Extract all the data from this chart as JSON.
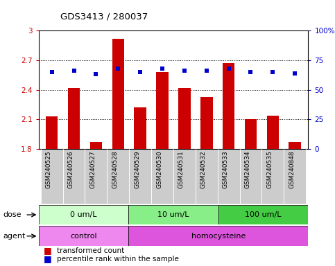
{
  "title": "GDS3413 / 280037",
  "samples": [
    "GSM240525",
    "GSM240526",
    "GSM240527",
    "GSM240528",
    "GSM240529",
    "GSM240530",
    "GSM240531",
    "GSM240532",
    "GSM240533",
    "GSM240534",
    "GSM240535",
    "GSM240848"
  ],
  "transformed_count": [
    2.13,
    2.42,
    1.87,
    2.92,
    2.22,
    2.58,
    2.42,
    2.33,
    2.67,
    2.1,
    2.14,
    1.87
  ],
  "percentile_rank": [
    65,
    66,
    63,
    68,
    65,
    68,
    66,
    66,
    68,
    65,
    65,
    64
  ],
  "bar_color": "#cc0000",
  "dot_color": "#0000cc",
  "ylim_left": [
    1.8,
    3.0
  ],
  "ylim_right": [
    0,
    100
  ],
  "yticks_left": [
    1.8,
    2.1,
    2.4,
    2.7,
    3.0
  ],
  "ytick_labels_left": [
    "1.8",
    "2.1",
    "2.4",
    "2.7",
    "3"
  ],
  "yticks_right": [
    0,
    25,
    50,
    75,
    100
  ],
  "ytick_labels_right": [
    "0",
    "25",
    "50",
    "75",
    "100%"
  ],
  "dose_groups": [
    {
      "label": "0 um/L",
      "start": 0,
      "end": 4,
      "color": "#ccffcc"
    },
    {
      "label": "10 um/L",
      "start": 4,
      "end": 8,
      "color": "#88ee88"
    },
    {
      "label": "100 um/L",
      "start": 8,
      "end": 12,
      "color": "#44cc44"
    }
  ],
  "agent_groups": [
    {
      "label": "control",
      "start": 0,
      "end": 4,
      "color": "#ee88ee"
    },
    {
      "label": "homocysteine",
      "start": 4,
      "end": 12,
      "color": "#dd55dd"
    }
  ],
  "dose_label": "dose",
  "agent_label": "agent",
  "legend_items": [
    {
      "color": "#cc0000",
      "label": "transformed count"
    },
    {
      "color": "#0000cc",
      "label": "percentile rank within the sample"
    }
  ],
  "tick_label_color_left": "#cc0000",
  "tick_label_color_right": "#0000cc",
  "bar_width": 0.55,
  "bar_bottom": 1.8,
  "xtick_bg": "#cccccc"
}
